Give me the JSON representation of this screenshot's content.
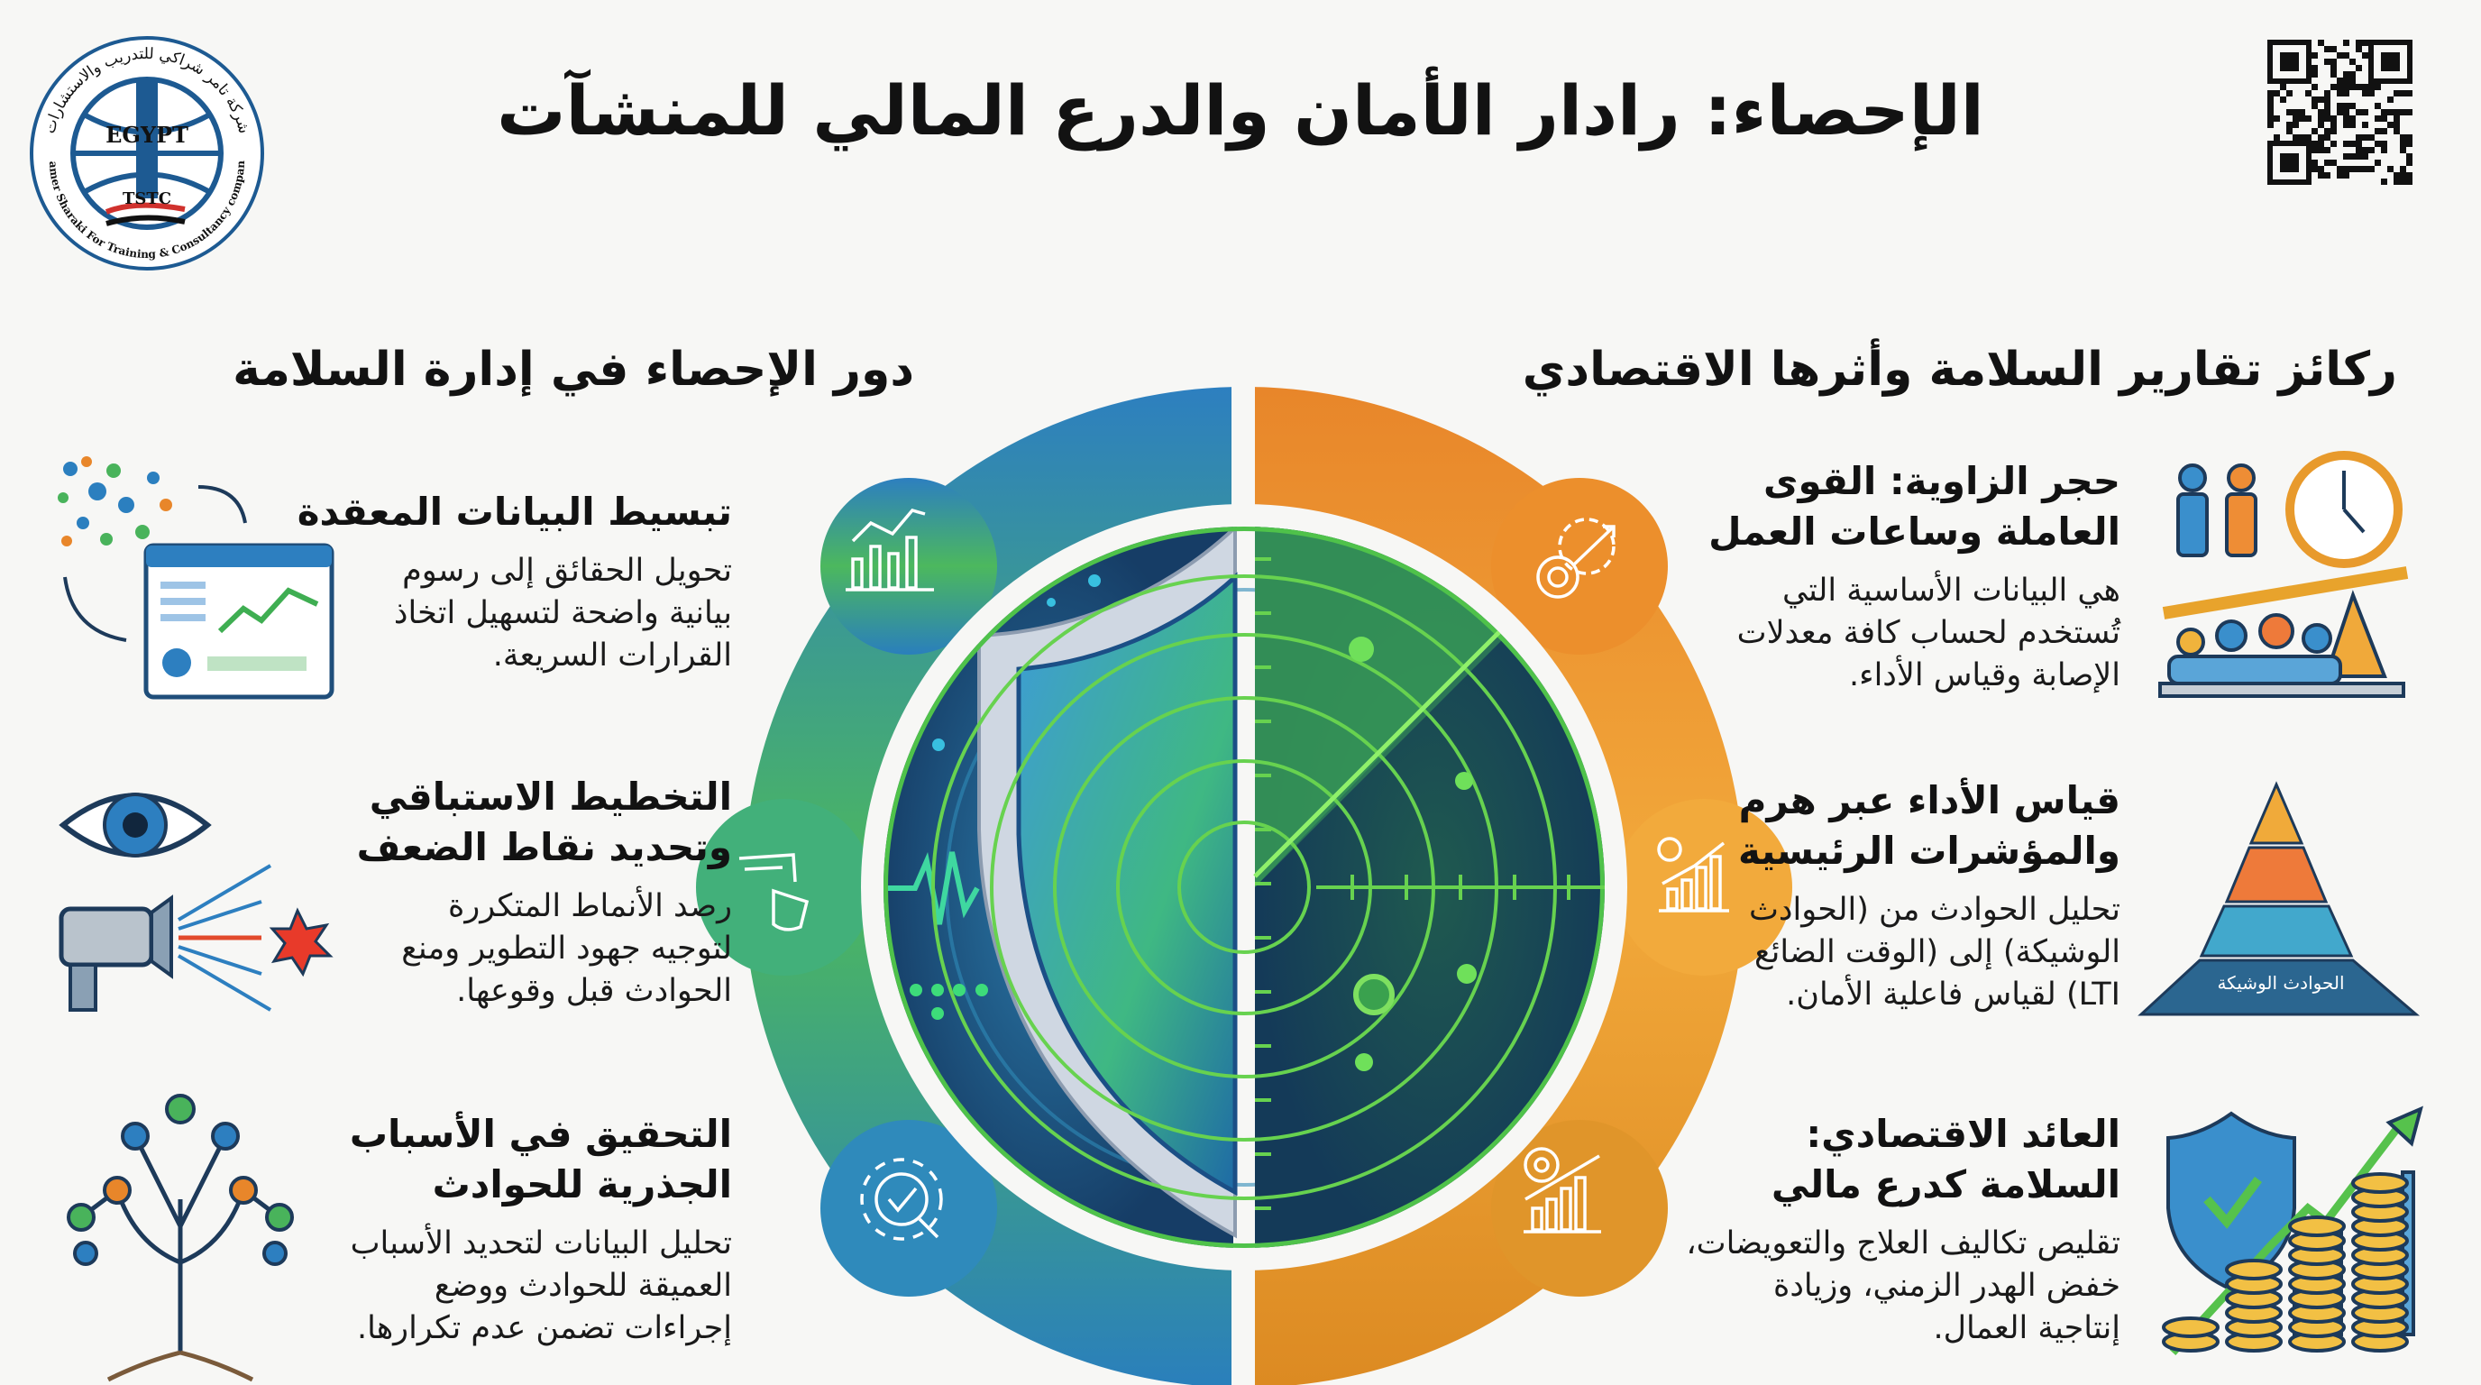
{
  "title": "الإحصاء: رادار الأمان والدرع المالي للمنشآت",
  "logo": {
    "arabic_name": "شركة تامر شراكي للتدريب والاستشارات",
    "english_name": "Tamer Sharaki For Training & Consultancy company",
    "country": "EGYPT",
    "abbreviation": "TSTC",
    "lighthouse_letters": [
      "T",
      "S",
      "T",
      "C"
    ]
  },
  "qr_code_icon": "qr-code",
  "left_section": {
    "heading": "دور الإحصاء في إدارة السلامة",
    "items": [
      {
        "icon": "dashboard-chart",
        "title_lines": [
          "تبسيط البيانات المعقدة"
        ],
        "body_lines": [
          "تحويل الحقائق إلى رسوم",
          "بيانية واضحة لتسهيل اتخاذ",
          "القرارات السريعة."
        ]
      },
      {
        "icon": "eye-projector",
        "title_lines": [
          "التخطيط الاستباقي",
          "وتحديد نقاط الضعف"
        ],
        "body_lines": [
          "رصد الأنماط المتكررة",
          "لتوجيه جهود التطوير ومنع",
          "الحوادث قبل وقوعها."
        ]
      },
      {
        "icon": "root-cause-tree",
        "title_lines": [
          "التحقيق في الأسباب",
          "الجذرية للحوادث"
        ],
        "body_lines": [
          "تحليل البيانات لتحديد الأسباب",
          "العميقة للحوادث ووضع",
          "إجراءات تضمن عدم تكرارها."
        ]
      }
    ]
  },
  "right_section": {
    "heading": "ركائز تقارير السلامة وأثرها الاقتصادي",
    "items": [
      {
        "icon": "workforce-clock-scale",
        "title_lines": [
          "حجر الزاوية: القوى",
          "العاملة وساعات العمل"
        ],
        "body_lines": [
          "هي البيانات الأساسية التي",
          "تُستخدم لحساب كافة معدلات",
          "الإصابة وقياس الأداء."
        ]
      },
      {
        "icon": "pyramid",
        "title_lines": [
          "قياس الأداء عبر هرم",
          "والمؤشرات الرئيسية"
        ],
        "body_lines": [
          "تحليل الحوادث من (الحوادث",
          "الوشيكة) إلى (الوقت الضائع",
          "LTI) لقياس فاعلية الأمان."
        ]
      },
      {
        "icon": "shield-coins-growth",
        "title_lines": [
          "العائد الاقتصادي:",
          "السلامة كدرع مالي"
        ],
        "body_lines": [
          "تقليص تكاليف العلاج والتعويضات،",
          "خفض الهدر الزمني، وزيادة",
          "إنتاجية العمال."
        ]
      }
    ]
  },
  "pyramid_label": "الحوادث الوشيكة",
  "colors": {
    "blue": "#2d7fc0",
    "green": "#4cb85e",
    "orange": "#e8862a",
    "amber": "#f2a93b",
    "dark_navy": "#173f66",
    "radar_green": "#6fe05a",
    "logo_blue": "#1d5a92"
  }
}
